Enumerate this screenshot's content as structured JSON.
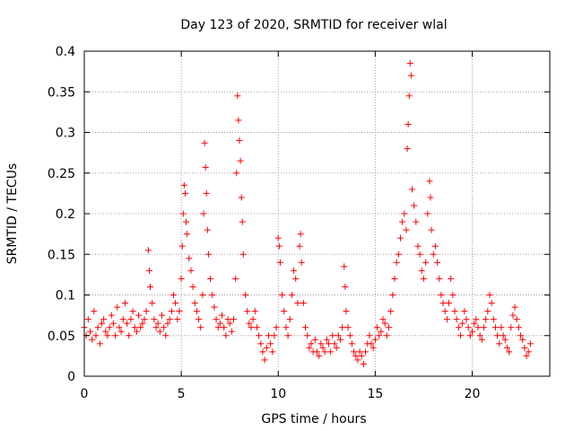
{
  "chart_data": {
    "type": "scatter",
    "title": "Day 123 of 2020, SRMTID for receiver wlal",
    "xlabel": "GPS time / hours",
    "ylabel": "SRMTID / TECUs",
    "xlim": [
      0,
      24
    ],
    "ylim": [
      0,
      0.4
    ],
    "xticks": [
      0,
      5,
      10,
      15,
      20
    ],
    "xtick_labels": [
      "0",
      "5",
      "10",
      "15",
      "20"
    ],
    "yticks": [
      0,
      0.05,
      0.1,
      0.15,
      0.2,
      0.25,
      0.3,
      0.35,
      0.4
    ],
    "ytick_labels": [
      "0",
      "0.05",
      "0.1",
      "0.15",
      "0.2",
      "0.25",
      "0.3",
      "0.35",
      "0.4"
    ],
    "grid": true,
    "marker": "+",
    "marker_color": "#ff0000",
    "series": [
      {
        "name": "SRMTID",
        "points": [
          [
            0.0,
            0.06
          ],
          [
            0.1,
            0.05
          ],
          [
            0.2,
            0.07
          ],
          [
            0.3,
            0.055
          ],
          [
            0.4,
            0.045
          ],
          [
            0.5,
            0.08
          ],
          [
            0.6,
            0.05
          ],
          [
            0.7,
            0.06
          ],
          [
            0.8,
            0.04
          ],
          [
            0.9,
            0.065
          ],
          [
            1.0,
            0.07
          ],
          [
            1.1,
            0.055
          ],
          [
            1.2,
            0.05
          ],
          [
            1.3,
            0.06
          ],
          [
            1.4,
            0.075
          ],
          [
            1.5,
            0.065
          ],
          [
            1.6,
            0.05
          ],
          [
            1.7,
            0.085
          ],
          [
            1.8,
            0.06
          ],
          [
            1.9,
            0.055
          ],
          [
            2.0,
            0.07
          ],
          [
            2.1,
            0.09
          ],
          [
            2.2,
            0.065
          ],
          [
            2.3,
            0.05
          ],
          [
            2.4,
            0.07
          ],
          [
            2.5,
            0.08
          ],
          [
            2.6,
            0.06
          ],
          [
            2.7,
            0.055
          ],
          [
            2.8,
            0.075
          ],
          [
            2.9,
            0.06
          ],
          [
            3.0,
            0.065
          ],
          [
            3.1,
            0.07
          ],
          [
            3.2,
            0.08
          ],
          [
            3.3,
            0.155
          ],
          [
            3.35,
            0.13
          ],
          [
            3.4,
            0.11
          ],
          [
            3.5,
            0.09
          ],
          [
            3.6,
            0.07
          ],
          [
            3.7,
            0.06
          ],
          [
            3.8,
            0.065
          ],
          [
            3.9,
            0.055
          ],
          [
            4.0,
            0.075
          ],
          [
            4.1,
            0.06
          ],
          [
            4.2,
            0.05
          ],
          [
            4.3,
            0.065
          ],
          [
            4.4,
            0.07
          ],
          [
            4.5,
            0.08
          ],
          [
            4.6,
            0.1
          ],
          [
            4.7,
            0.09
          ],
          [
            4.8,
            0.07
          ],
          [
            4.9,
            0.08
          ],
          [
            5.0,
            0.12
          ],
          [
            5.05,
            0.16
          ],
          [
            5.1,
            0.2
          ],
          [
            5.15,
            0.235
          ],
          [
            5.2,
            0.225
          ],
          [
            5.25,
            0.19
          ],
          [
            5.3,
            0.175
          ],
          [
            5.4,
            0.145
          ],
          [
            5.5,
            0.13
          ],
          [
            5.6,
            0.11
          ],
          [
            5.7,
            0.09
          ],
          [
            5.8,
            0.08
          ],
          [
            5.9,
            0.07
          ],
          [
            6.0,
            0.06
          ],
          [
            6.1,
            0.1
          ],
          [
            6.15,
            0.2
          ],
          [
            6.2,
            0.287
          ],
          [
            6.25,
            0.257
          ],
          [
            6.3,
            0.225
          ],
          [
            6.35,
            0.18
          ],
          [
            6.4,
            0.15
          ],
          [
            6.5,
            0.12
          ],
          [
            6.6,
            0.1
          ],
          [
            6.7,
            0.085
          ],
          [
            6.8,
            0.07
          ],
          [
            6.9,
            0.06
          ],
          [
            7.0,
            0.065
          ],
          [
            7.1,
            0.075
          ],
          [
            7.2,
            0.06
          ],
          [
            7.3,
            0.05
          ],
          [
            7.4,
            0.07
          ],
          [
            7.5,
            0.065
          ],
          [
            7.6,
            0.055
          ],
          [
            7.7,
            0.07
          ],
          [
            7.8,
            0.12
          ],
          [
            7.85,
            0.25
          ],
          [
            7.9,
            0.345
          ],
          [
            7.95,
            0.315
          ],
          [
            8.0,
            0.29
          ],
          [
            8.05,
            0.265
          ],
          [
            8.1,
            0.22
          ],
          [
            8.15,
            0.19
          ],
          [
            8.2,
            0.15
          ],
          [
            8.3,
            0.1
          ],
          [
            8.4,
            0.08
          ],
          [
            8.5,
            0.065
          ],
          [
            8.6,
            0.06
          ],
          [
            8.7,
            0.07
          ],
          [
            8.8,
            0.08
          ],
          [
            8.9,
            0.06
          ],
          [
            9.0,
            0.05
          ],
          [
            9.1,
            0.04
          ],
          [
            9.2,
            0.03
          ],
          [
            9.3,
            0.02
          ],
          [
            9.4,
            0.035
          ],
          [
            9.5,
            0.05
          ],
          [
            9.6,
            0.04
          ],
          [
            9.7,
            0.03
          ],
          [
            9.8,
            0.05
          ],
          [
            9.9,
            0.06
          ],
          [
            10.0,
            0.17
          ],
          [
            10.05,
            0.16
          ],
          [
            10.1,
            0.14
          ],
          [
            10.2,
            0.1
          ],
          [
            10.3,
            0.08
          ],
          [
            10.4,
            0.06
          ],
          [
            10.5,
            0.05
          ],
          [
            10.6,
            0.07
          ],
          [
            10.7,
            0.1
          ],
          [
            10.8,
            0.13
          ],
          [
            10.9,
            0.12
          ],
          [
            11.0,
            0.09
          ],
          [
            11.1,
            0.16
          ],
          [
            11.15,
            0.175
          ],
          [
            11.2,
            0.14
          ],
          [
            11.3,
            0.09
          ],
          [
            11.4,
            0.06
          ],
          [
            11.5,
            0.05
          ],
          [
            11.6,
            0.035
          ],
          [
            11.7,
            0.04
          ],
          [
            11.8,
            0.03
          ],
          [
            11.9,
            0.045
          ],
          [
            12.0,
            0.03
          ],
          [
            12.1,
            0.025
          ],
          [
            12.2,
            0.04
          ],
          [
            12.3,
            0.035
          ],
          [
            12.4,
            0.03
          ],
          [
            12.5,
            0.045
          ],
          [
            12.6,
            0.04
          ],
          [
            12.7,
            0.03
          ],
          [
            12.8,
            0.05
          ],
          [
            12.9,
            0.04
          ],
          [
            13.0,
            0.035
          ],
          [
            13.1,
            0.05
          ],
          [
            13.2,
            0.045
          ],
          [
            13.3,
            0.06
          ],
          [
            13.4,
            0.135
          ],
          [
            13.45,
            0.11
          ],
          [
            13.5,
            0.08
          ],
          [
            13.6,
            0.06
          ],
          [
            13.7,
            0.05
          ],
          [
            13.8,
            0.04
          ],
          [
            13.9,
            0.03
          ],
          [
            14.0,
            0.025
          ],
          [
            14.1,
            0.02
          ],
          [
            14.2,
            0.03
          ],
          [
            14.3,
            0.025
          ],
          [
            14.4,
            0.015
          ],
          [
            14.5,
            0.03
          ],
          [
            14.6,
            0.04
          ],
          [
            14.7,
            0.05
          ],
          [
            14.8,
            0.04
          ],
          [
            14.9,
            0.035
          ],
          [
            15.0,
            0.045
          ],
          [
            15.1,
            0.06
          ],
          [
            15.2,
            0.05
          ],
          [
            15.3,
            0.055
          ],
          [
            15.4,
            0.07
          ],
          [
            15.5,
            0.065
          ],
          [
            15.6,
            0.05
          ],
          [
            15.7,
            0.06
          ],
          [
            15.8,
            0.08
          ],
          [
            15.9,
            0.1
          ],
          [
            16.0,
            0.12
          ],
          [
            16.1,
            0.14
          ],
          [
            16.2,
            0.15
          ],
          [
            16.3,
            0.17
          ],
          [
            16.4,
            0.19
          ],
          [
            16.5,
            0.2
          ],
          [
            16.6,
            0.18
          ],
          [
            16.65,
            0.28
          ],
          [
            16.7,
            0.31
          ],
          [
            16.75,
            0.345
          ],
          [
            16.8,
            0.385
          ],
          [
            16.85,
            0.37
          ],
          [
            16.9,
            0.23
          ],
          [
            17.0,
            0.21
          ],
          [
            17.1,
            0.19
          ],
          [
            17.2,
            0.16
          ],
          [
            17.3,
            0.15
          ],
          [
            17.4,
            0.13
          ],
          [
            17.5,
            0.12
          ],
          [
            17.6,
            0.14
          ],
          [
            17.7,
            0.2
          ],
          [
            17.8,
            0.24
          ],
          [
            17.85,
            0.22
          ],
          [
            17.9,
            0.18
          ],
          [
            18.0,
            0.15
          ],
          [
            18.1,
            0.16
          ],
          [
            18.2,
            0.14
          ],
          [
            18.3,
            0.12
          ],
          [
            18.4,
            0.1
          ],
          [
            18.5,
            0.09
          ],
          [
            18.6,
            0.08
          ],
          [
            18.7,
            0.07
          ],
          [
            18.8,
            0.09
          ],
          [
            18.9,
            0.12
          ],
          [
            19.0,
            0.1
          ],
          [
            19.1,
            0.08
          ],
          [
            19.2,
            0.07
          ],
          [
            19.3,
            0.06
          ],
          [
            19.4,
            0.05
          ],
          [
            19.5,
            0.065
          ],
          [
            19.6,
            0.08
          ],
          [
            19.7,
            0.07
          ],
          [
            19.8,
            0.06
          ],
          [
            19.9,
            0.05
          ],
          [
            20.0,
            0.055
          ],
          [
            20.1,
            0.065
          ],
          [
            20.2,
            0.07
          ],
          [
            20.3,
            0.06
          ],
          [
            20.4,
            0.05
          ],
          [
            20.5,
            0.045
          ],
          [
            20.6,
            0.06
          ],
          [
            20.7,
            0.07
          ],
          [
            20.8,
            0.08
          ],
          [
            20.9,
            0.1
          ],
          [
            21.0,
            0.09
          ],
          [
            21.1,
            0.07
          ],
          [
            21.2,
            0.06
          ],
          [
            21.3,
            0.05
          ],
          [
            21.4,
            0.04
          ],
          [
            21.5,
            0.06
          ],
          [
            21.6,
            0.05
          ],
          [
            21.7,
            0.045
          ],
          [
            21.8,
            0.035
          ],
          [
            21.9,
            0.03
          ],
          [
            22.0,
            0.06
          ],
          [
            22.1,
            0.075
          ],
          [
            22.2,
            0.085
          ],
          [
            22.3,
            0.07
          ],
          [
            22.4,
            0.06
          ],
          [
            22.5,
            0.05
          ],
          [
            22.6,
            0.045
          ],
          [
            22.7,
            0.035
          ],
          [
            22.8,
            0.025
          ],
          [
            22.9,
            0.03
          ],
          [
            23.0,
            0.04
          ]
        ]
      }
    ]
  }
}
